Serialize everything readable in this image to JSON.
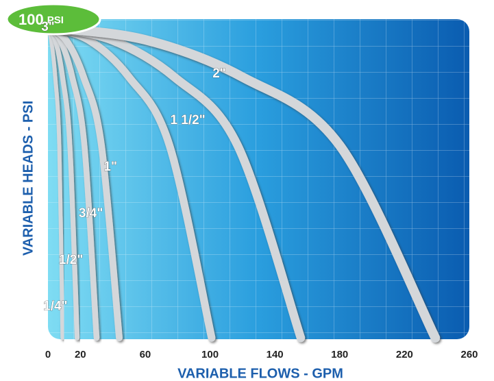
{
  "chart_data": {
    "type": "line",
    "x_label": "VARIABLE FLOWS - GPM",
    "y_label": "VARIABLE HEADS - PSI",
    "ytick_unit": "PSI",
    "xlim": [
      0,
      260
    ],
    "ylim": [
      0,
      100
    ],
    "xticks": [
      0,
      20,
      60,
      100,
      140,
      180,
      220,
      260
    ],
    "yticks": [
      100
    ],
    "series": [
      {
        "name": "1/4\"",
        "color": "#d4d7da",
        "x": [
          0,
          2,
          4.5,
          7,
          9
        ],
        "values": [
          100,
          96,
          84,
          62,
          0
        ]
      },
      {
        "name": "1/2\"",
        "color": "#d4d7da",
        "x": [
          0,
          4.5,
          9,
          13.5,
          18
        ],
        "values": [
          100,
          96,
          84,
          62,
          0
        ]
      },
      {
        "name": "3/4\"",
        "color": "#d4d7da",
        "x": [
          0,
          7.5,
          15,
          22.5,
          30
        ],
        "values": [
          100,
          96,
          84,
          62,
          0
        ]
      },
      {
        "name": "1\"",
        "color": "#d4d7da",
        "x": [
          0,
          11,
          22,
          33,
          44
        ],
        "values": [
          100,
          96,
          84,
          62,
          0
        ]
      },
      {
        "name": "1 1/2\"",
        "color": "#d4d7da",
        "x": [
          0,
          25,
          50,
          75,
          101
        ],
        "values": [
          100,
          96,
          84,
          62,
          0
        ]
      },
      {
        "name": "2\"",
        "color": "#d4d7da",
        "x": [
          0,
          39,
          78,
          117,
          156
        ],
        "values": [
          100,
          96,
          84,
          62,
          0
        ]
      },
      {
        "name": "3\"",
        "color": "#d4d7da",
        "x": [
          0,
          60,
          120,
          180,
          239
        ],
        "values": [
          100,
          96,
          84,
          62,
          0
        ]
      }
    ]
  }
}
